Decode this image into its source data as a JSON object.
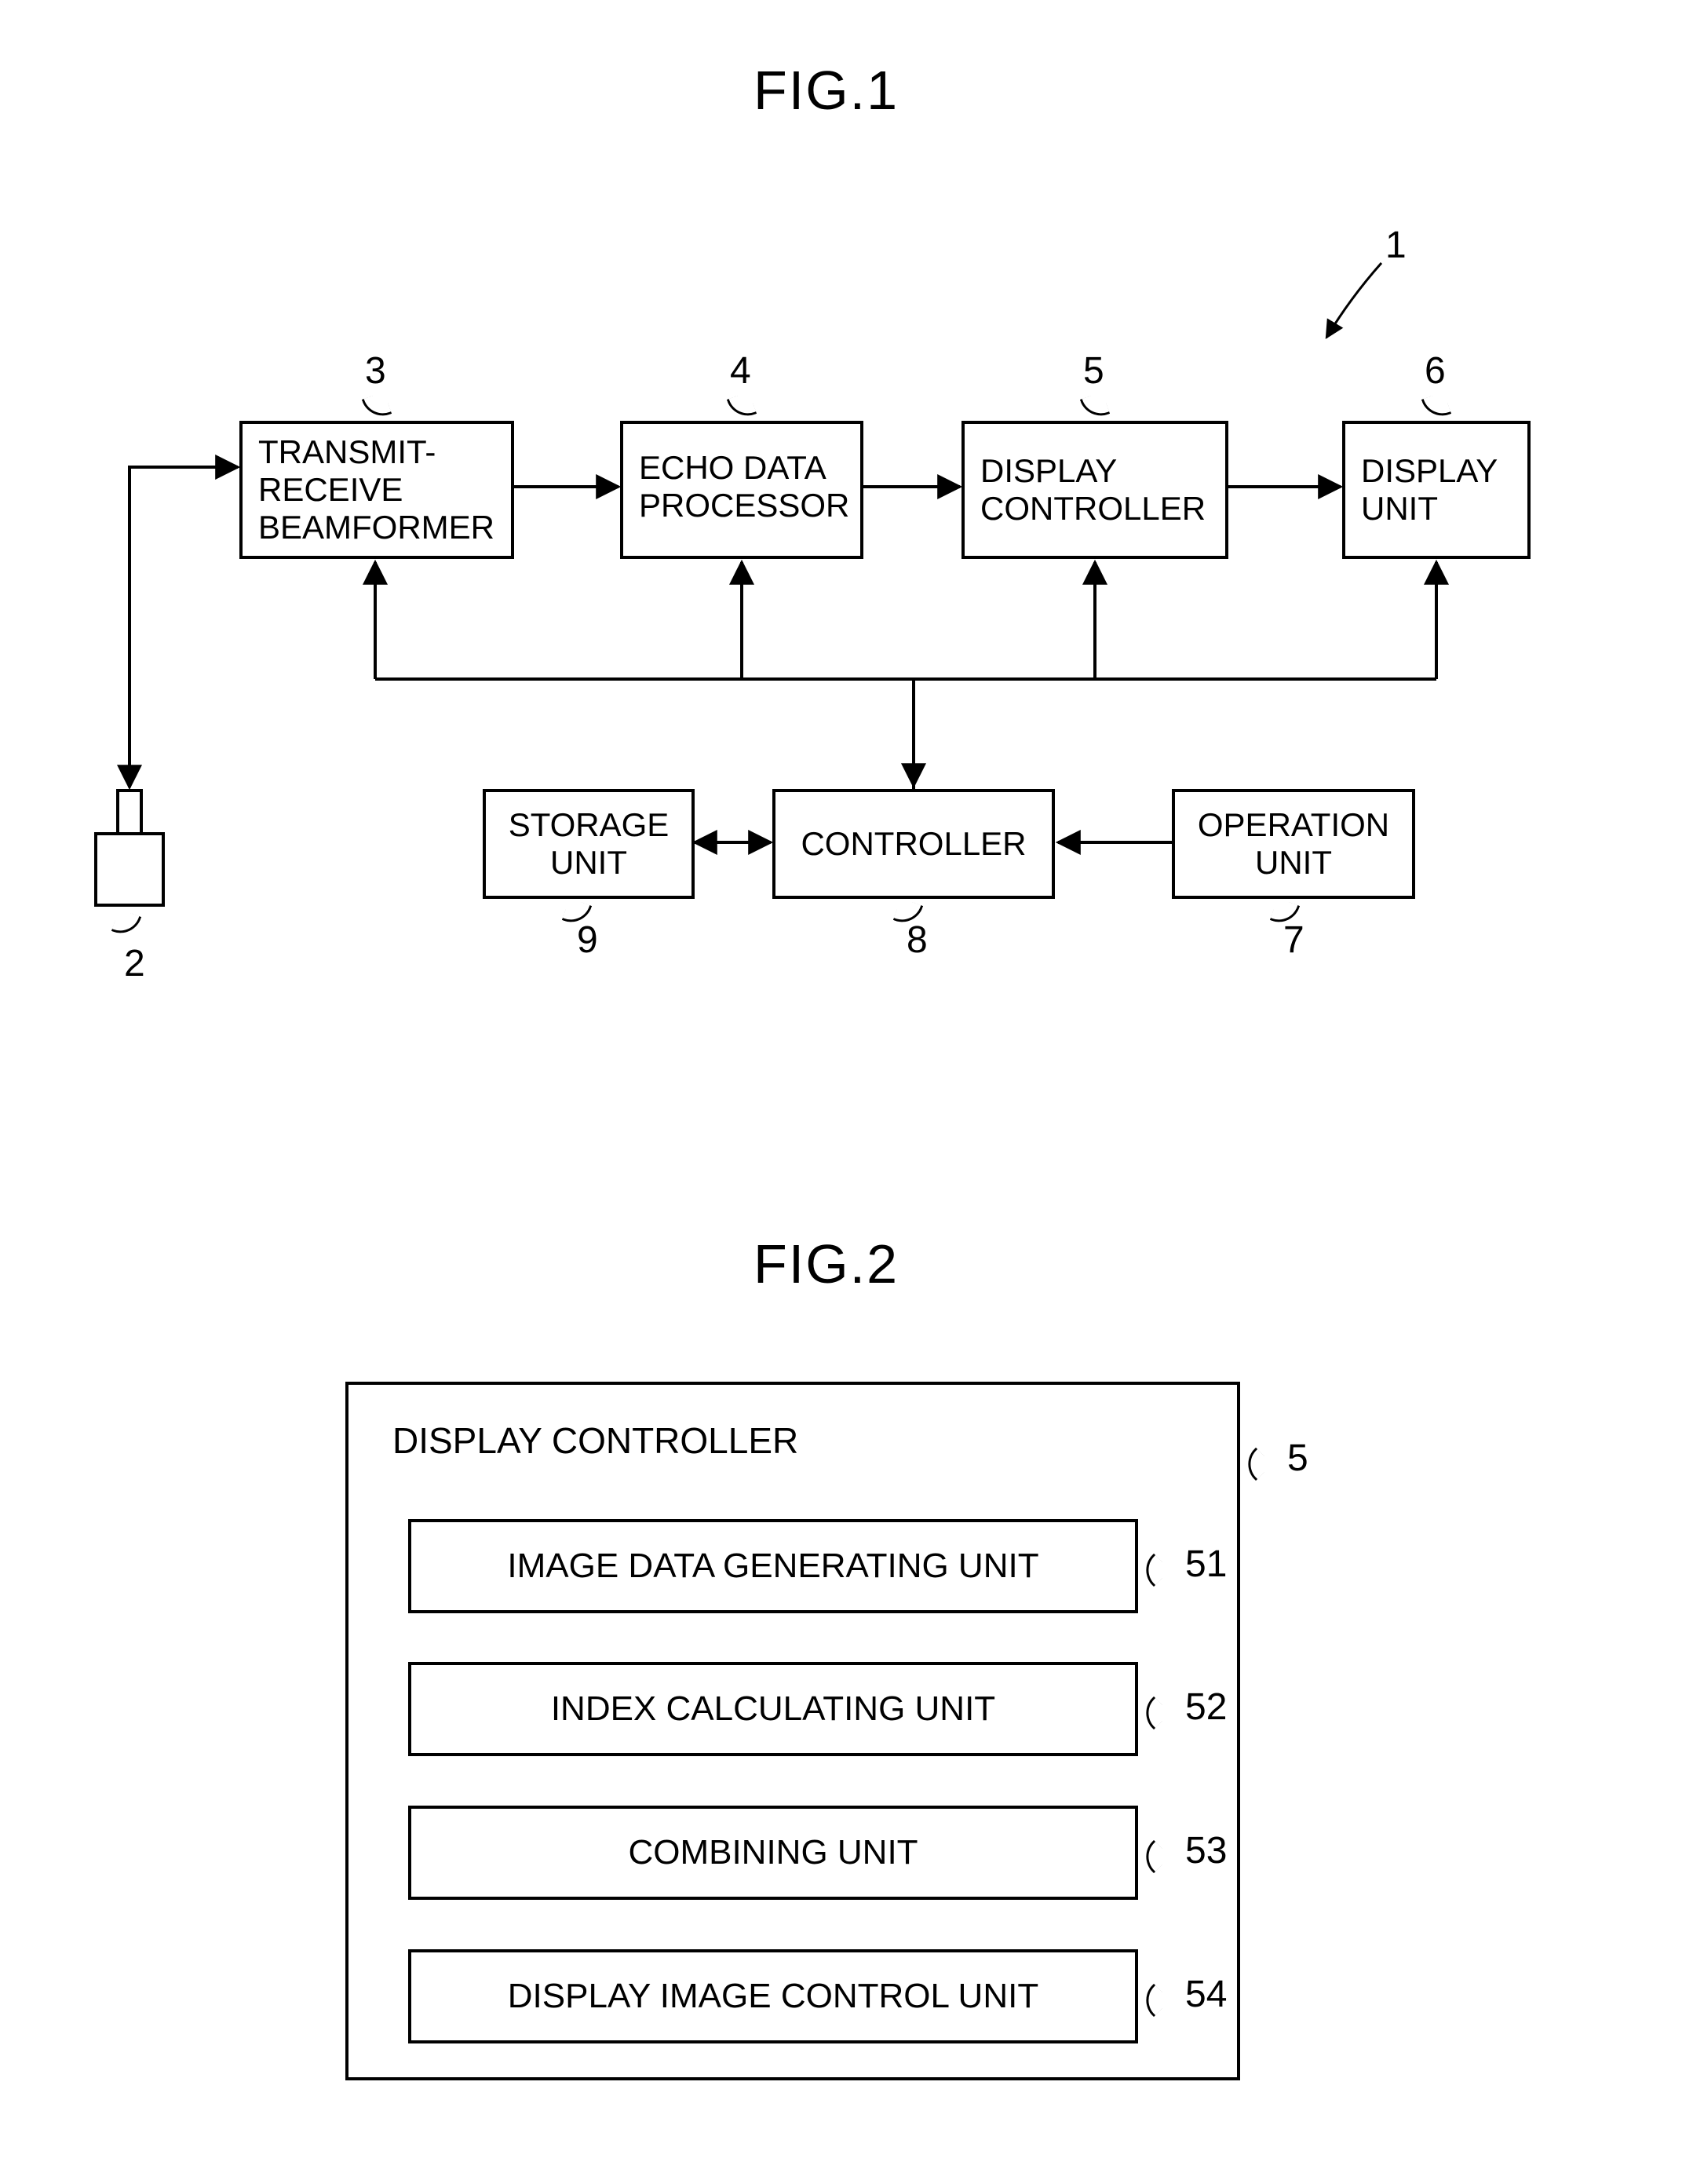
{
  "fig1": {
    "title": "FIG.1",
    "system_ref": "1",
    "probe_ref": "2",
    "blocks": {
      "beamformer": {
        "label": "TRANSMIT-\nRECEIVE\nBEAMFORMER",
        "ref": "3"
      },
      "echo": {
        "label": "ECHO DATA\nPROCESSOR",
        "ref": "4"
      },
      "dispctrl": {
        "label": "DISPLAY\nCONTROLLER",
        "ref": "5"
      },
      "dispunit": {
        "label": "DISPLAY\nUNIT",
        "ref": "6"
      },
      "storage": {
        "label": "STORAGE\nUNIT",
        "ref": "9"
      },
      "controller": {
        "label": "CONTROLLER",
        "ref": "8"
      },
      "operation": {
        "label": "OPERATION\nUNIT",
        "ref": "7"
      }
    }
  },
  "fig2": {
    "title": "FIG.2",
    "outer_label": "DISPLAY CONTROLLER",
    "outer_ref": "5",
    "items": [
      {
        "label": "IMAGE DATA GENERATING UNIT",
        "ref": "51"
      },
      {
        "label": "INDEX CALCULATING UNIT",
        "ref": "52"
      },
      {
        "label": "COMBINING UNIT",
        "ref": "53"
      },
      {
        "label": "DISPLAY IMAGE CONTROL UNIT",
        "ref": "54"
      }
    ]
  },
  "style": {
    "stroke": "#000000",
    "stroke_width": 4,
    "arrow_size": 22,
    "bg": "#ffffff",
    "font": "Arial"
  }
}
